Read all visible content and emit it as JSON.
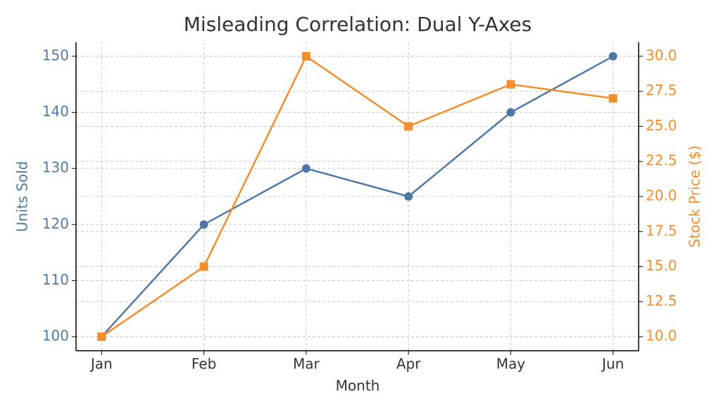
{
  "chart_data": {
    "type": "line",
    "title": "Misleading Correlation: Dual Y-Axes",
    "xlabel": "Month",
    "ylabel": "Units Sold",
    "y2label": "Stock Price ($)",
    "categories": [
      "Jan",
      "Feb",
      "Mar",
      "Apr",
      "May",
      "Jun"
    ],
    "series": [
      {
        "name": "Units Sold",
        "color": "#4e79a7",
        "marker": "circle",
        "values": [
          100,
          120,
          130,
          125,
          140,
          150
        ]
      },
      {
        "name": "Stock Price ($)",
        "color": "#f28e2b",
        "marker": "square",
        "axis": "y2",
        "values": [
          10,
          15,
          30,
          25,
          28,
          27
        ]
      }
    ],
    "ylim": [
      97.5,
      152.5
    ],
    "yticks": [
      100,
      110,
      120,
      130,
      140,
      150
    ],
    "y2lim": [
      9,
      31
    ],
    "y2ticks": [
      {
        "value": 10,
        "label": "10.0"
      },
      {
        "value": 12.5,
        "label": "12.5"
      },
      {
        "value": 15,
        "label": "15.0"
      },
      {
        "value": 17.5,
        "label": "17.5"
      },
      {
        "value": 20,
        "label": "20.0"
      },
      {
        "value": 22.5,
        "label": "22.5"
      },
      {
        "value": 25,
        "label": "25.0"
      },
      {
        "value": 27.5,
        "label": "27.5"
      },
      {
        "value": 30,
        "label": "30.0"
      }
    ],
    "grid": true
  }
}
